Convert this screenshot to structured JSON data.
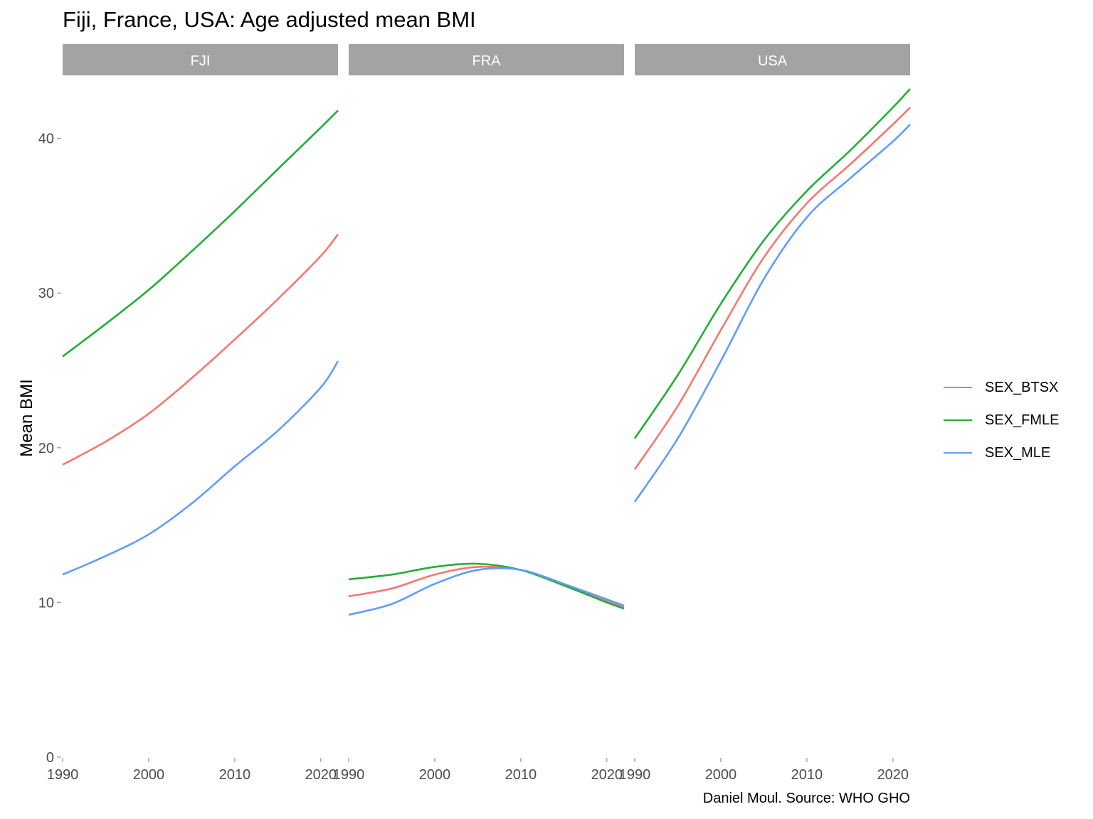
{
  "chart_data": {
    "type": "line",
    "title": "Fiji, France, USA: Age adjusted mean BMI",
    "ylabel": "Mean BMI",
    "xlabel": "",
    "caption": "Daniel Moul. Source: WHO GHO",
    "ylim": [
      0,
      44
    ],
    "y_ticks": [
      0,
      10,
      20,
      30,
      40
    ],
    "xlim": [
      1990,
      2022
    ],
    "x_ticks": [
      1990,
      2000,
      2010,
      2020
    ],
    "grid": false,
    "legend_position": "right",
    "series_names": [
      "SEX_BTSX",
      "SEX_FMLE",
      "SEX_MLE"
    ],
    "colors": {
      "SEX_BTSX": "#F8766D",
      "SEX_FMLE": "#20AF34",
      "SEX_MLE": "#619CFF"
    },
    "panels": [
      {
        "label": "FJI",
        "x": [
          1990,
          1995,
          2000,
          2005,
          2010,
          2015,
          2020,
          2022
        ],
        "series": [
          {
            "name": "SEX_BTSX",
            "values": [
              18.9,
              20.4,
              22.2,
              24.5,
              27.0,
              29.6,
              32.4,
              33.8
            ]
          },
          {
            "name": "SEX_FMLE",
            "values": [
              25.9,
              28.0,
              30.2,
              32.7,
              35.3,
              38.0,
              40.7,
              41.8
            ]
          },
          {
            "name": "SEX_MLE",
            "values": [
              11.8,
              13.0,
              14.4,
              16.4,
              18.8,
              21.1,
              23.9,
              25.6
            ]
          }
        ]
      },
      {
        "label": "FRA",
        "x": [
          1990,
          1995,
          2000,
          2005,
          2010,
          2015,
          2020,
          2022
        ],
        "series": [
          {
            "name": "SEX_BTSX",
            "values": [
              10.4,
              10.9,
              11.8,
              12.3,
              12.1,
              11.2,
              10.1,
              9.7
            ]
          },
          {
            "name": "SEX_FMLE",
            "values": [
              11.5,
              11.8,
              12.3,
              12.5,
              12.1,
              11.1,
              10.0,
              9.6
            ]
          },
          {
            "name": "SEX_MLE",
            "values": [
              9.2,
              9.9,
              11.2,
              12.1,
              12.1,
              11.2,
              10.2,
              9.8
            ]
          }
        ]
      },
      {
        "label": "USA",
        "x": [
          1990,
          1995,
          2000,
          2005,
          2010,
          2015,
          2020,
          2022
        ],
        "series": [
          {
            "name": "SEX_BTSX",
            "values": [
              18.6,
              22.7,
              27.6,
              32.3,
              35.8,
              38.3,
              40.9,
              42.0
            ]
          },
          {
            "name": "SEX_FMLE",
            "values": [
              20.6,
              24.7,
              29.3,
              33.4,
              36.6,
              39.2,
              42.0,
              43.2
            ]
          },
          {
            "name": "SEX_MLE",
            "values": [
              16.5,
              20.6,
              25.6,
              30.9,
              34.9,
              37.4,
              39.8,
              40.9
            ]
          }
        ]
      }
    ]
  }
}
